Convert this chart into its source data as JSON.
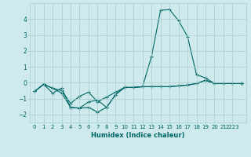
{
  "xlabel": "Humidex (Indice chaleur)",
  "background_color": "#ceeaec",
  "grid_color": "#aacdd0",
  "line_color": "#006666",
  "x_values": [
    0,
    1,
    2,
    3,
    4,
    5,
    6,
    7,
    8,
    9,
    10,
    11,
    12,
    13,
    14,
    15,
    16,
    17,
    18,
    19,
    20,
    21,
    22,
    23
  ],
  "series1": [
    -0.55,
    -0.1,
    -0.35,
    -0.65,
    -1.55,
    -1.6,
    -1.2,
    -1.1,
    -1.55,
    -0.75,
    -0.3,
    -0.3,
    -0.25,
    1.65,
    4.55,
    4.6,
    3.9,
    2.9,
    0.5,
    0.3,
    -0.05,
    -0.05,
    -0.05,
    -0.05
  ],
  "series2": [
    -0.55,
    -0.1,
    -0.65,
    -0.35,
    -1.55,
    -1.6,
    -1.55,
    -1.85,
    -1.55,
    -0.75,
    -0.3,
    -0.3,
    -0.25,
    -0.25,
    -0.25,
    -0.25,
    -0.2,
    -0.15,
    -0.05,
    0.15,
    -0.05,
    -0.05,
    -0.05,
    -0.05
  ],
  "series3": [
    -0.55,
    -0.1,
    -0.35,
    -0.5,
    -1.3,
    -0.85,
    -0.6,
    -1.2,
    -0.9,
    -0.6,
    -0.3,
    -0.3,
    -0.25,
    -0.25,
    -0.25,
    -0.25,
    -0.2,
    -0.15,
    -0.05,
    0.15,
    -0.05,
    -0.05,
    -0.05,
    -0.05
  ],
  "ylim": [
    -2.5,
    5.0
  ],
  "yticks": [
    -2,
    -1,
    0,
    1,
    2,
    3,
    4
  ],
  "xlim": [
    -0.5,
    23.5
  ],
  "xtick_positions": [
    0,
    1,
    2,
    3,
    4,
    5,
    6,
    7,
    8,
    9,
    10,
    11,
    12,
    13,
    14,
    15,
    16,
    17,
    18,
    19,
    20,
    21,
    22
  ],
  "xtick_labels": [
    "0",
    "1",
    "2",
    "3",
    "4",
    "5",
    "6",
    "7",
    "8",
    "9",
    "10",
    "11",
    "12",
    "13",
    "14",
    "15",
    "16",
    "17",
    "18",
    "19",
    "20",
    "21",
    "2223"
  ]
}
